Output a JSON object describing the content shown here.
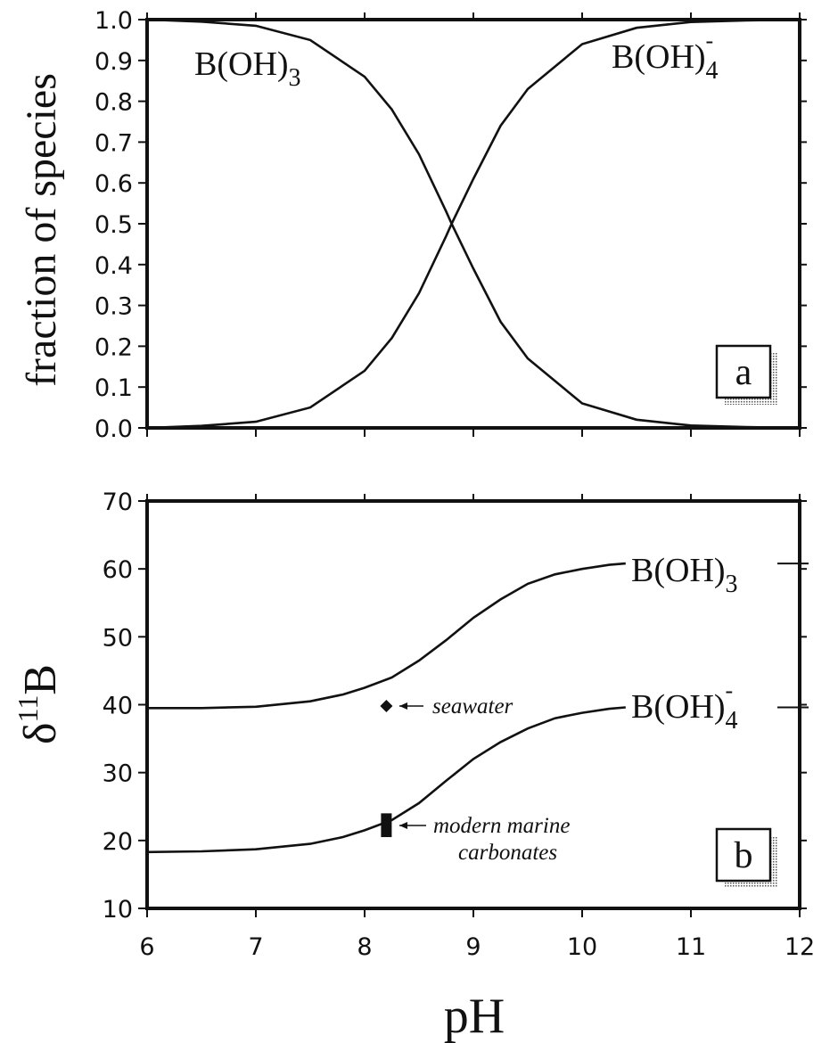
{
  "chart_data": [
    {
      "panel": "a",
      "type": "line",
      "ylabel": "fraction of species",
      "xlabel": "",
      "xlim": [
        6,
        12
      ],
      "ylim": [
        0,
        1
      ],
      "x_ticks": [
        6,
        7,
        8,
        9,
        10,
        11,
        12
      ],
      "y_ticks": [
        "0.0",
        "0.1",
        "0.2",
        "0.3",
        "0.4",
        "0.5",
        "0.6",
        "0.7",
        "0.8",
        "0.9",
        "1.0"
      ],
      "series": [
        {
          "name": "B(OH)3",
          "label_main": "B(OH)",
          "label_sub": "3",
          "x": [
            6.0,
            6.5,
            7.0,
            7.5,
            8.0,
            8.25,
            8.5,
            8.75,
            8.8,
            9.0,
            9.25,
            9.5,
            10.0,
            10.5,
            11.0,
            11.5,
            12.0
          ],
          "y": [
            1.0,
            0.995,
            0.985,
            0.95,
            0.86,
            0.78,
            0.67,
            0.53,
            0.5,
            0.39,
            0.26,
            0.17,
            0.06,
            0.02,
            0.006,
            0.002,
            0.0
          ]
        },
        {
          "name": "B(OH)4-",
          "label_main": "B(OH)",
          "label_sub": "4",
          "label_sup": "-",
          "x": [
            6.0,
            6.5,
            7.0,
            7.5,
            8.0,
            8.25,
            8.5,
            8.75,
            8.8,
            9.0,
            9.25,
            9.5,
            10.0,
            10.5,
            11.0,
            11.5,
            12.0
          ],
          "y": [
            0.0,
            0.005,
            0.015,
            0.05,
            0.14,
            0.22,
            0.33,
            0.47,
            0.5,
            0.61,
            0.74,
            0.83,
            0.94,
            0.98,
            0.994,
            0.998,
            1.0
          ]
        }
      ]
    },
    {
      "panel": "b",
      "type": "line",
      "ylabel_main": "δ",
      "ylabel_sup": "11",
      "ylabel_tail": "B",
      "xlabel": "pH",
      "xlim": [
        6,
        12
      ],
      "ylim": [
        10,
        70
      ],
      "x_ticks": [
        "6",
        "7",
        "8",
        "9",
        "10",
        "11",
        "12"
      ],
      "y_ticks": [
        "10",
        "20",
        "30",
        "40",
        "50",
        "60",
        "70"
      ],
      "series": [
        {
          "name": "B(OH)3",
          "label_main": "B(OH)",
          "label_sub": "3",
          "x": [
            6.0,
            6.5,
            7.0,
            7.5,
            7.8,
            8.0,
            8.25,
            8.5,
            8.75,
            9.0,
            9.25,
            9.5,
            9.75,
            10.0,
            10.25,
            10.4
          ],
          "y": [
            39.5,
            39.5,
            39.7,
            40.5,
            41.5,
            42.5,
            44.0,
            46.5,
            49.5,
            52.8,
            55.5,
            57.8,
            59.2,
            60.0,
            60.6,
            60.8
          ]
        },
        {
          "name": "B(OH)4-",
          "label_main": "B(OH)",
          "label_sub": "4",
          "label_sup": "-",
          "x": [
            6.0,
            6.5,
            7.0,
            7.5,
            7.8,
            8.0,
            8.25,
            8.5,
            8.75,
            9.0,
            9.25,
            9.5,
            9.75,
            10.0,
            10.25,
            10.4
          ],
          "y": [
            18.3,
            18.4,
            18.7,
            19.5,
            20.5,
            21.5,
            23.0,
            25.5,
            28.8,
            32.0,
            34.5,
            36.5,
            38.0,
            38.8,
            39.4,
            39.6
          ]
        }
      ],
      "markers": [
        {
          "name": "seawater",
          "shape": "diamond",
          "x": 8.2,
          "y": 39.8,
          "label": "seawater"
        },
        {
          "name": "modern marine carbonates",
          "shape": "bar",
          "x": 8.2,
          "y_range": [
            20.5,
            24.0
          ],
          "label_line1": "modern marine",
          "label_line2": "carbonates"
        }
      ]
    }
  ]
}
